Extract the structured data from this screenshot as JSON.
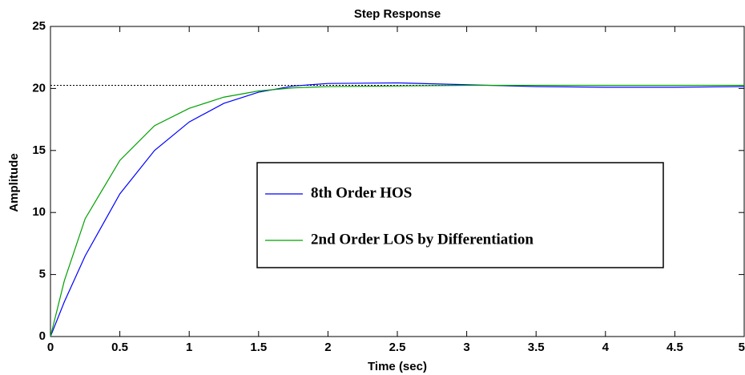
{
  "chart_data": {
    "type": "line",
    "title": "Step Response",
    "x_label": "Time (sec)",
    "y_label": "Amplitude",
    "x": [
      0,
      0.1,
      0.25,
      0.5,
      0.75,
      1,
      1.25,
      1.5,
      1.75,
      2,
      2.5,
      3,
      3.5,
      4,
      4.5,
      5
    ],
    "series": [
      {
        "name": "8th Order HOS",
        "color": "#0000ff",
        "values": [
          0,
          2.8,
          6.5,
          11.5,
          15,
          17.3,
          18.8,
          19.7,
          20.2,
          20.4,
          20.45,
          20.3,
          20.15,
          20.1,
          20.1,
          20.15
        ]
      },
      {
        "name": "2nd Order LOS by Differentiation",
        "color": "#00a000",
        "values": [
          0,
          4.5,
          9.5,
          14.2,
          17,
          18.4,
          19.3,
          19.8,
          20.05,
          20.15,
          20.2,
          20.25,
          20.25,
          20.25,
          20.25,
          20.25
        ]
      }
    ],
    "reference_line": 20.25,
    "xlim": [
      0,
      5
    ],
    "xticks": [
      0,
      0.5,
      1,
      1.5,
      2,
      2.5,
      3,
      3.5,
      4,
      4.5,
      5
    ],
    "ylim": [
      0,
      25
    ],
    "yticks": [
      0,
      5,
      10,
      15,
      20,
      25
    ],
    "grid": false
  }
}
